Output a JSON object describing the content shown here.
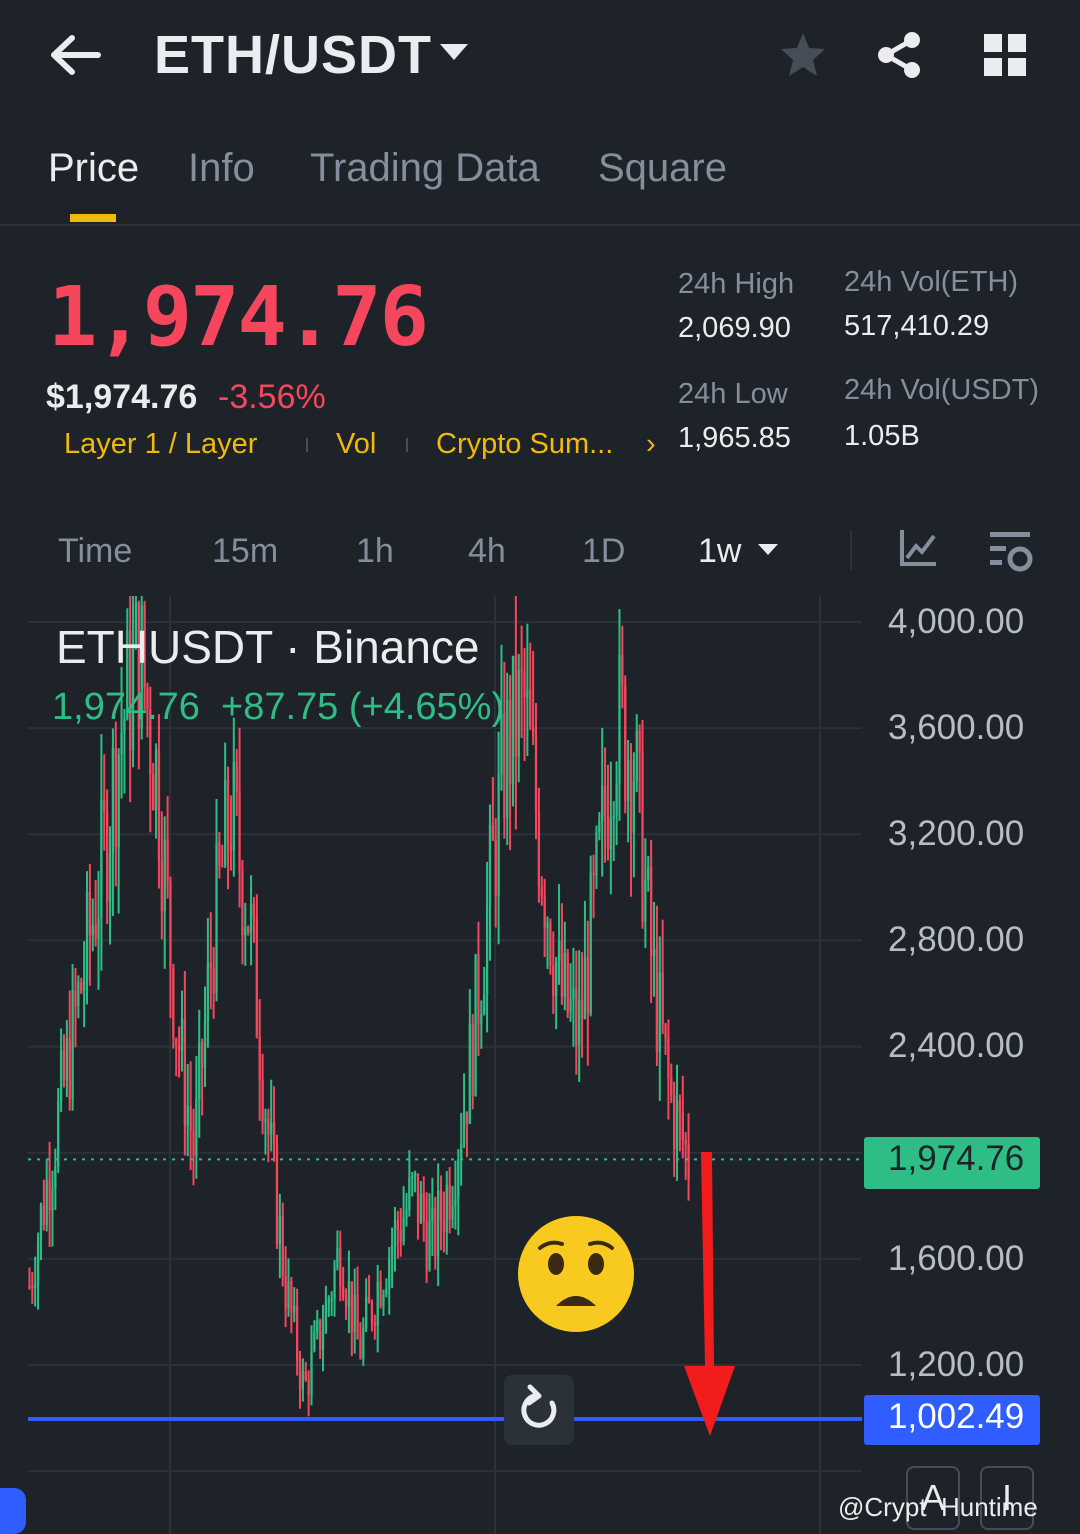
{
  "header": {
    "title": "ETH/USDT"
  },
  "tabs": [
    {
      "label": "Price"
    },
    {
      "label": "Info"
    },
    {
      "label": "Trading Data"
    },
    {
      "label": "Square"
    }
  ],
  "ticker": {
    "last_price": "1,974.76",
    "usd_price": "$1,974.76",
    "change_pct": "-3.56%",
    "tags": [
      "Layer 1 / Layer",
      "Vol",
      "Crypto Sum..."
    ],
    "more": "›",
    "high_label": "24h High",
    "high": "2,069.90",
    "low_label": "24h Low",
    "low": "1,965.85",
    "vol_eth_label": "24h Vol(ETH)",
    "vol_eth": "517,410.29",
    "vol_usdt_label": "24h Vol(USDT)",
    "vol_usdt": "1.05B"
  },
  "intervals": {
    "items": [
      "Time",
      "15m",
      "1h",
      "4h",
      "1D",
      "1w"
    ],
    "selected": "1w"
  },
  "chart": {
    "title": "ETHUSDT · Binance",
    "subtitle": "1,974.76  +87.75 (+4.65%)",
    "y_ticks": [
      "4,000.00",
      "3,600.00",
      "3,200.00",
      "2,800.00",
      "2,400.00",
      "1,600.00",
      "1,200.00"
    ],
    "current_price_label": "1,974.76",
    "line_label": "1,002.49",
    "watermark": "@Crypt  Huntime",
    "tool_a": "A",
    "tool_b": "I"
  },
  "colors": {
    "up": "#2ebd85",
    "down": "#f6465d",
    "accent": "#f0b90b",
    "line": "#2f5dff",
    "background": "#1e2329"
  },
  "chart_data": {
    "type": "candlestick",
    "title": "ETHUSDT · Binance",
    "interval": "1w",
    "ylim": [
      800,
      4100
    ],
    "y_ticks": [
      1200,
      1600,
      2400,
      2800,
      3200,
      3600,
      4000
    ],
    "current_price": 1974.76,
    "horizontal_line": 1002.49,
    "close_series": [
      1500,
      1900,
      2300,
      2700,
      3100,
      3600,
      3900,
      3400,
      2500,
      2000,
      2800,
      3300,
      2900,
      2100,
      1500,
      1100,
      1350,
      1650,
      1250,
      1500,
      1700,
      1850,
      1650,
      1900,
      2300,
      2900,
      3500,
      3700,
      3100,
      2600,
      2450,
      3000,
      3650,
      3500,
      2700,
      2200,
      1974.76
    ]
  }
}
